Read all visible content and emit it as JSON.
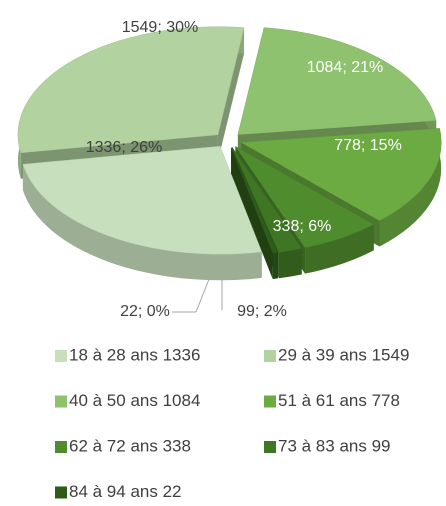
{
  "chart_data": {
    "type": "pie",
    "categories": [
      "18 à 28 ans 1336",
      "29 à 39 ans 1549",
      "40 à 50 ans 1084",
      "51 à 61 ans 778",
      "62 à 72 ans 338",
      "73 à 83 ans 99",
      "84 à 94 ans 22"
    ],
    "values": [
      1336,
      1549,
      1084,
      778,
      338,
      99,
      22
    ],
    "value_labels": [
      "1336; 26%",
      "1549; 30%",
      "1084; 21%",
      "778; 15%",
      "338; 6%",
      "99; 2%",
      "22; 0%"
    ],
    "colors": [
      "#c8dfbd",
      "#b2d3a0",
      "#8fc26e",
      "#6cab42",
      "#4f8c2d",
      "#3f7624",
      "#2e5c19"
    ],
    "legend": "bottom"
  }
}
